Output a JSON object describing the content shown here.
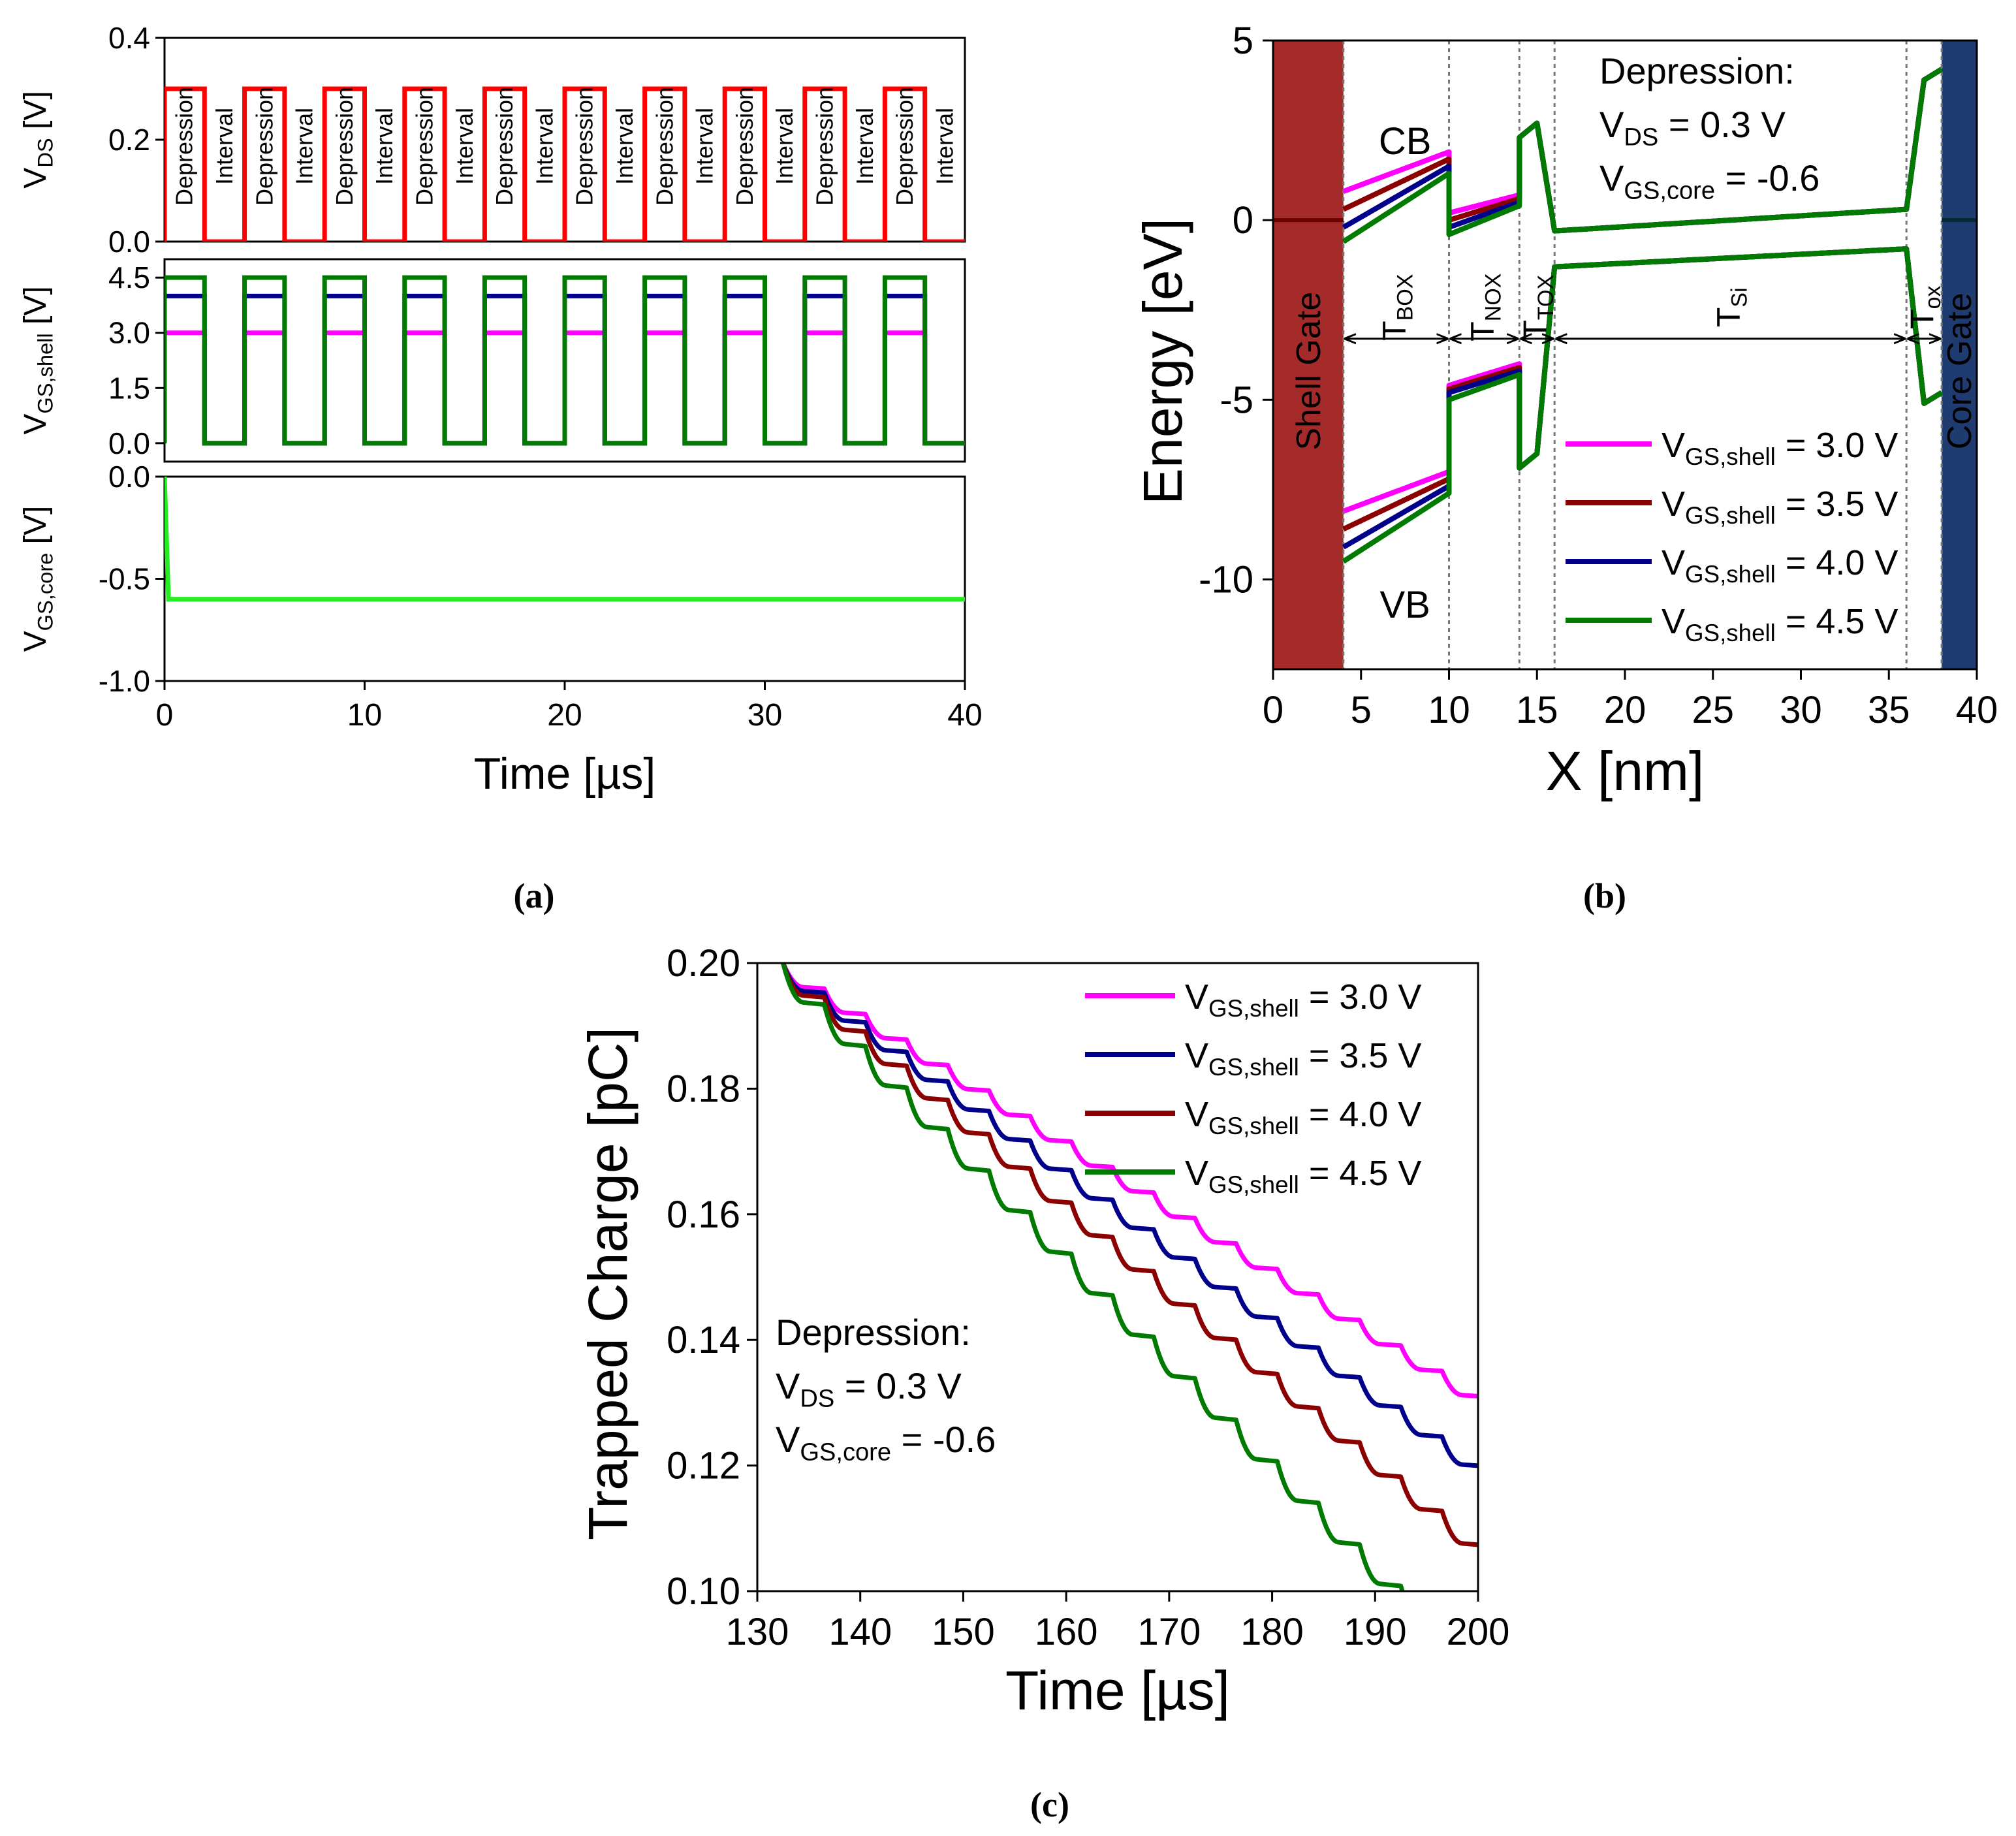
{
  "captions": {
    "a": "(a)",
    "b": "(b)",
    "c": "(c)"
  },
  "colors": {
    "magenta": "#ff00ff",
    "darkred": "#8b0000",
    "navy": "#00008b",
    "green": "#007a00",
    "red": "#ff0000",
    "lime": "#22ee22",
    "shell_gate": "#a52a2a",
    "core_gate": "#1f3b70"
  },
  "chart_data": [
    {
      "id": "a",
      "type": "line",
      "xlabel": "Time [µs]",
      "xlim": [
        0,
        40
      ],
      "xticks": [
        0,
        10,
        20,
        30,
        40
      ],
      "period_us": 4,
      "duty_on_us": 2,
      "panels": [
        {
          "ylabel_main": "V",
          "ylabel_sub": "DS",
          "ylabel_unit": " [V]",
          "ylim": [
            0,
            0.4
          ],
          "yticks": [
            "0.0",
            "0.2",
            "0.4"
          ],
          "series": [
            {
              "name": "VDS",
              "high": 0.3,
              "low": 0.0,
              "color": "#ff0000"
            }
          ],
          "phase_labels": [
            "Depression",
            "Interval"
          ]
        },
        {
          "ylabel_main": "V",
          "ylabel_sub": "GS,shell",
          "ylabel_unit": " [V]",
          "ylim": [
            -0.5,
            5.0
          ],
          "yticks": [
            "0.0",
            "1.5",
            "3.0",
            "4.5"
          ],
          "series": [
            {
              "name": "VGS,shell = 3.0 V",
              "high": 3.0,
              "low": 0.0,
              "color": "#ff00ff"
            },
            {
              "name": "VGS,shell = 4.0 V",
              "high": 4.0,
              "low": 0.0,
              "color": "#00008b"
            },
            {
              "name": "VGS,shell = 4.5 V",
              "high": 4.5,
              "low": 0.0,
              "color": "#007a00"
            }
          ]
        },
        {
          "ylabel_main": "V",
          "ylabel_sub": "GS,core",
          "ylabel_unit": " [V]",
          "ylim": [
            -1.0,
            0.0
          ],
          "yticks": [
            "0.0",
            "-0.5",
            "-1.0"
          ],
          "series": [
            {
              "name": "VGS,core",
              "values": [
                [
                  0,
                  0.0
                ],
                [
                  0.2,
                  -0.6
                ],
                [
                  40,
                  -0.6
                ]
              ],
              "color": "#22ee22"
            }
          ]
        }
      ]
    },
    {
      "id": "b",
      "type": "line",
      "xlabel": "X [nm]",
      "ylabel": "Energy [eV]",
      "xlim": [
        0,
        40
      ],
      "ylim": [
        -12.5,
        5
      ],
      "xticks": [
        0,
        5,
        10,
        15,
        20,
        25,
        30,
        35,
        40
      ],
      "yticks": [
        5,
        0,
        -5,
        -10
      ],
      "regions": [
        {
          "label": "Shell Gate",
          "x0": 0,
          "x1": 4,
          "color": "#a52a2a"
        },
        {
          "label": "Core Gate",
          "x0": 38,
          "x1": 40,
          "color": "#1f3b70"
        }
      ],
      "boundaries": [
        4,
        10,
        14,
        16,
        36,
        38
      ],
      "layer_labels": [
        {
          "main": "T",
          "sub": "BOX",
          "x0": 4,
          "x1": 10
        },
        {
          "main": "T",
          "sub": "NOX",
          "x0": 10,
          "x1": 14
        },
        {
          "main": "T",
          "sub": "TOX",
          "x0": 14,
          "x1": 16
        },
        {
          "main": "T",
          "sub": "Si",
          "x0": 16,
          "x1": 36
        },
        {
          "main": "T",
          "sub": "ox",
          "x0": 36,
          "x1": 38
        }
      ],
      "band_labels": [
        {
          "text": "CB",
          "x": 7.5,
          "y": 2.2
        },
        {
          "text": "VB",
          "x": 7.5,
          "y": -10.7
        }
      ],
      "annotation": [
        "Depression:",
        "V",
        "DS",
        " = 0.3 V",
        "V",
        "GS,core",
        " = -0.6"
      ],
      "series": [
        {
          "name": "V",
          "sub": "GS,shell",
          "suffix": " = 3.0 V",
          "color": "#ff00ff",
          "cb": [
            [
              4,
              0.8
            ],
            [
              10,
              1.9
            ],
            [
              10,
              0.2
            ],
            [
              14,
              0.7
            ],
            [
              14,
              2.3
            ],
            [
              15,
              2.7
            ],
            [
              16,
              -0.3
            ],
            [
              36,
              0.3
            ],
            [
              37,
              3.9
            ],
            [
              38,
              4.2
            ]
          ],
          "vb": [
            [
              4,
              -8.1
            ],
            [
              10,
              -7.0
            ],
            [
              10,
              -4.6
            ],
            [
              14,
              -4.0
            ],
            [
              14,
              -6.9
            ],
            [
              15,
              -6.5
            ],
            [
              16,
              -1.3
            ],
            [
              36,
              -0.8
            ],
            [
              37,
              -5.1
            ],
            [
              38,
              -4.8
            ]
          ]
        },
        {
          "name": "V",
          "sub": "GS,shell",
          "suffix": " = 3.5 V",
          "color": "#8b0000",
          "cb": [
            [
              4,
              0.3
            ],
            [
              10,
              1.7
            ],
            [
              10,
              0.0
            ],
            [
              14,
              0.6
            ],
            [
              14,
              2.3
            ],
            [
              15,
              2.7
            ],
            [
              16,
              -0.3
            ],
            [
              36,
              0.3
            ],
            [
              37,
              3.9
            ],
            [
              38,
              4.2
            ]
          ],
          "vb": [
            [
              4,
              -8.6
            ],
            [
              10,
              -7.2
            ],
            [
              10,
              -4.7
            ],
            [
              14,
              -4.1
            ],
            [
              14,
              -6.9
            ],
            [
              15,
              -6.5
            ],
            [
              16,
              -1.3
            ],
            [
              36,
              -0.8
            ],
            [
              37,
              -5.1
            ],
            [
              38,
              -4.8
            ]
          ]
        },
        {
          "name": "V",
          "sub": "GS,shell",
          "suffix": " = 4.0 V",
          "color": "#00008b",
          "cb": [
            [
              4,
              -0.2
            ],
            [
              10,
              1.5
            ],
            [
              10,
              -0.2
            ],
            [
              14,
              0.5
            ],
            [
              14,
              2.3
            ],
            [
              15,
              2.7
            ],
            [
              16,
              -0.3
            ],
            [
              36,
              0.3
            ],
            [
              37,
              3.9
            ],
            [
              38,
              4.2
            ]
          ],
          "vb": [
            [
              4,
              -9.1
            ],
            [
              10,
              -7.4
            ],
            [
              10,
              -4.8
            ],
            [
              14,
              -4.2
            ],
            [
              14,
              -6.9
            ],
            [
              15,
              -6.5
            ],
            [
              16,
              -1.3
            ],
            [
              36,
              -0.8
            ],
            [
              37,
              -5.1
            ],
            [
              38,
              -4.8
            ]
          ]
        },
        {
          "name": "V",
          "sub": "GS,shell",
          "suffix": " = 4.5 V",
          "color": "#007a00",
          "cb": [
            [
              4,
              -0.6
            ],
            [
              10,
              1.3
            ],
            [
              10,
              -0.4
            ],
            [
              14,
              0.4
            ],
            [
              14,
              2.3
            ],
            [
              15,
              2.7
            ],
            [
              16,
              -0.3
            ],
            [
              36,
              0.3
            ],
            [
              37,
              3.9
            ],
            [
              38,
              4.2
            ]
          ],
          "vb": [
            [
              4,
              -9.5
            ],
            [
              10,
              -7.6
            ],
            [
              10,
              -5.0
            ],
            [
              14,
              -4.3
            ],
            [
              14,
              -6.9
            ],
            [
              15,
              -6.5
            ],
            [
              16,
              -1.3
            ],
            [
              36,
              -0.8
            ],
            [
              37,
              -5.1
            ],
            [
              38,
              -4.8
            ]
          ]
        }
      ]
    },
    {
      "id": "c",
      "type": "line",
      "xlabel": "Time [µs]",
      "ylabel": "Trapped Charge [pC]",
      "xlim": [
        130,
        200
      ],
      "ylim": [
        0.1,
        0.2
      ],
      "xticks": [
        130,
        140,
        150,
        160,
        170,
        180,
        190,
        200
      ],
      "yticks": [
        "0.10",
        "0.12",
        "0.14",
        "0.16",
        "0.18",
        "0.20"
      ],
      "annotation": [
        "Depression:",
        "V",
        "DS",
        " = 0.3 V",
        "V",
        "GS,core",
        " = -0.6"
      ],
      "start": [
        132.5,
        0.2
      ],
      "step_period_us": 4,
      "series": [
        {
          "name": "V",
          "sub": "GS,shell",
          "suffix": " = 3.0 V",
          "color": "#ff00ff",
          "end": [
            200,
            0.1315
          ]
        },
        {
          "name": "V",
          "sub": "GS,shell",
          "suffix": " = 3.5 V",
          "color": "#00008b",
          "end": [
            200,
            0.1205
          ]
        },
        {
          "name": "V",
          "sub": "GS,shell",
          "suffix": " = 4.0 V",
          "color": "#8b0000",
          "end": [
            200,
            0.108
          ]
        },
        {
          "name": "V",
          "sub": "GS,shell",
          "suffix": " = 4.5 V",
          "color": "#007a00",
          "end": [
            193,
            0.1
          ]
        }
      ]
    }
  ]
}
